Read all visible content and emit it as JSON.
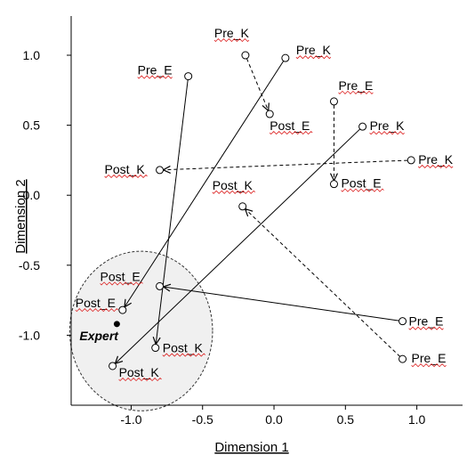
{
  "chart_data": {
    "type": "scatter",
    "xlabel": "Dimension 1",
    "ylabel": "Dimension 2",
    "xlim": [
      -1.42,
      1.32
    ],
    "ylim": [
      -1.5,
      1.28
    ],
    "x_ticks": [
      {
        "value": -1.0,
        "label": "-1.0"
      },
      {
        "value": -0.5,
        "label": "-0.5"
      },
      {
        "value": 0.0,
        "label": "0.0"
      },
      {
        "value": 0.5,
        "label": "0.5"
      },
      {
        "value": 1.0,
        "label": "1.0"
      }
    ],
    "y_ticks": [
      {
        "value": 1.0,
        "label": "1.0"
      },
      {
        "value": 0.5,
        "label": "0.5"
      },
      {
        "value": 0.0,
        "label": "0.0"
      },
      {
        "value": -0.5,
        "label": "-0.5"
      },
      {
        "value": -1.0,
        "label": "-1.0"
      }
    ],
    "points": [
      {
        "id": "p1",
        "label": "Pre_K",
        "x": -0.2,
        "y": 1.0
      },
      {
        "id": "p2",
        "label": "Post_E",
        "x": -0.03,
        "y": 0.58
      },
      {
        "id": "p3",
        "label": "Pre_K",
        "x": 0.08,
        "y": 0.98
      },
      {
        "id": "p4",
        "label": "Post_E",
        "x": -1.06,
        "y": -0.82
      },
      {
        "id": "p5",
        "label": "Pre_E",
        "x": -0.6,
        "y": 0.85
      },
      {
        "id": "p6",
        "label": "Post_K",
        "x": -0.83,
        "y": -1.09
      },
      {
        "id": "p7",
        "label": "Pre_E",
        "x": 0.42,
        "y": 0.67
      },
      {
        "id": "p8",
        "label": "Post_E",
        "x": 0.42,
        "y": 0.08
      },
      {
        "id": "p9",
        "label": "Pre_K",
        "x": 0.62,
        "y": 0.49
      },
      {
        "id": "p10",
        "label": "Post_K",
        "x": -1.13,
        "y": -1.22
      },
      {
        "id": "p11",
        "label": "Pre_K",
        "x": 0.96,
        "y": 0.25
      },
      {
        "id": "p12",
        "label": "Post_K",
        "x": -0.8,
        "y": 0.18
      },
      {
        "id": "p13",
        "label": "Post_K",
        "x": -0.22,
        "y": -0.08
      },
      {
        "id": "p14",
        "label": "Pre_E",
        "x": 0.9,
        "y": -1.17
      },
      {
        "id": "p15",
        "label": "Pre_E",
        "x": 0.9,
        "y": -0.9
      },
      {
        "id": "p16",
        "label": "Post_E",
        "x": -0.8,
        "y": -0.65
      }
    ],
    "arrows": [
      {
        "from": "p1",
        "to": "p2",
        "style": "dashed"
      },
      {
        "from": "p3",
        "to": "p4",
        "style": "solid"
      },
      {
        "from": "p5",
        "to": "p6",
        "style": "solid"
      },
      {
        "from": "p7",
        "to": "p8",
        "style": "dashed"
      },
      {
        "from": "p9",
        "to": "p10",
        "style": "solid"
      },
      {
        "from": "p11",
        "to": "p12",
        "style": "dashed"
      },
      {
        "from": "p14",
        "to": "p13",
        "style": "dashed"
      },
      {
        "from": "p15",
        "to": "p16",
        "style": "solid"
      }
    ],
    "expert": {
      "label": "Expert",
      "x": -1.1,
      "y": -0.92
    },
    "expert_region": {
      "cx": -0.93,
      "cy": -0.97,
      "rx": 0.5,
      "ry": 0.57
    },
    "grid": false,
    "legend": "none"
  }
}
